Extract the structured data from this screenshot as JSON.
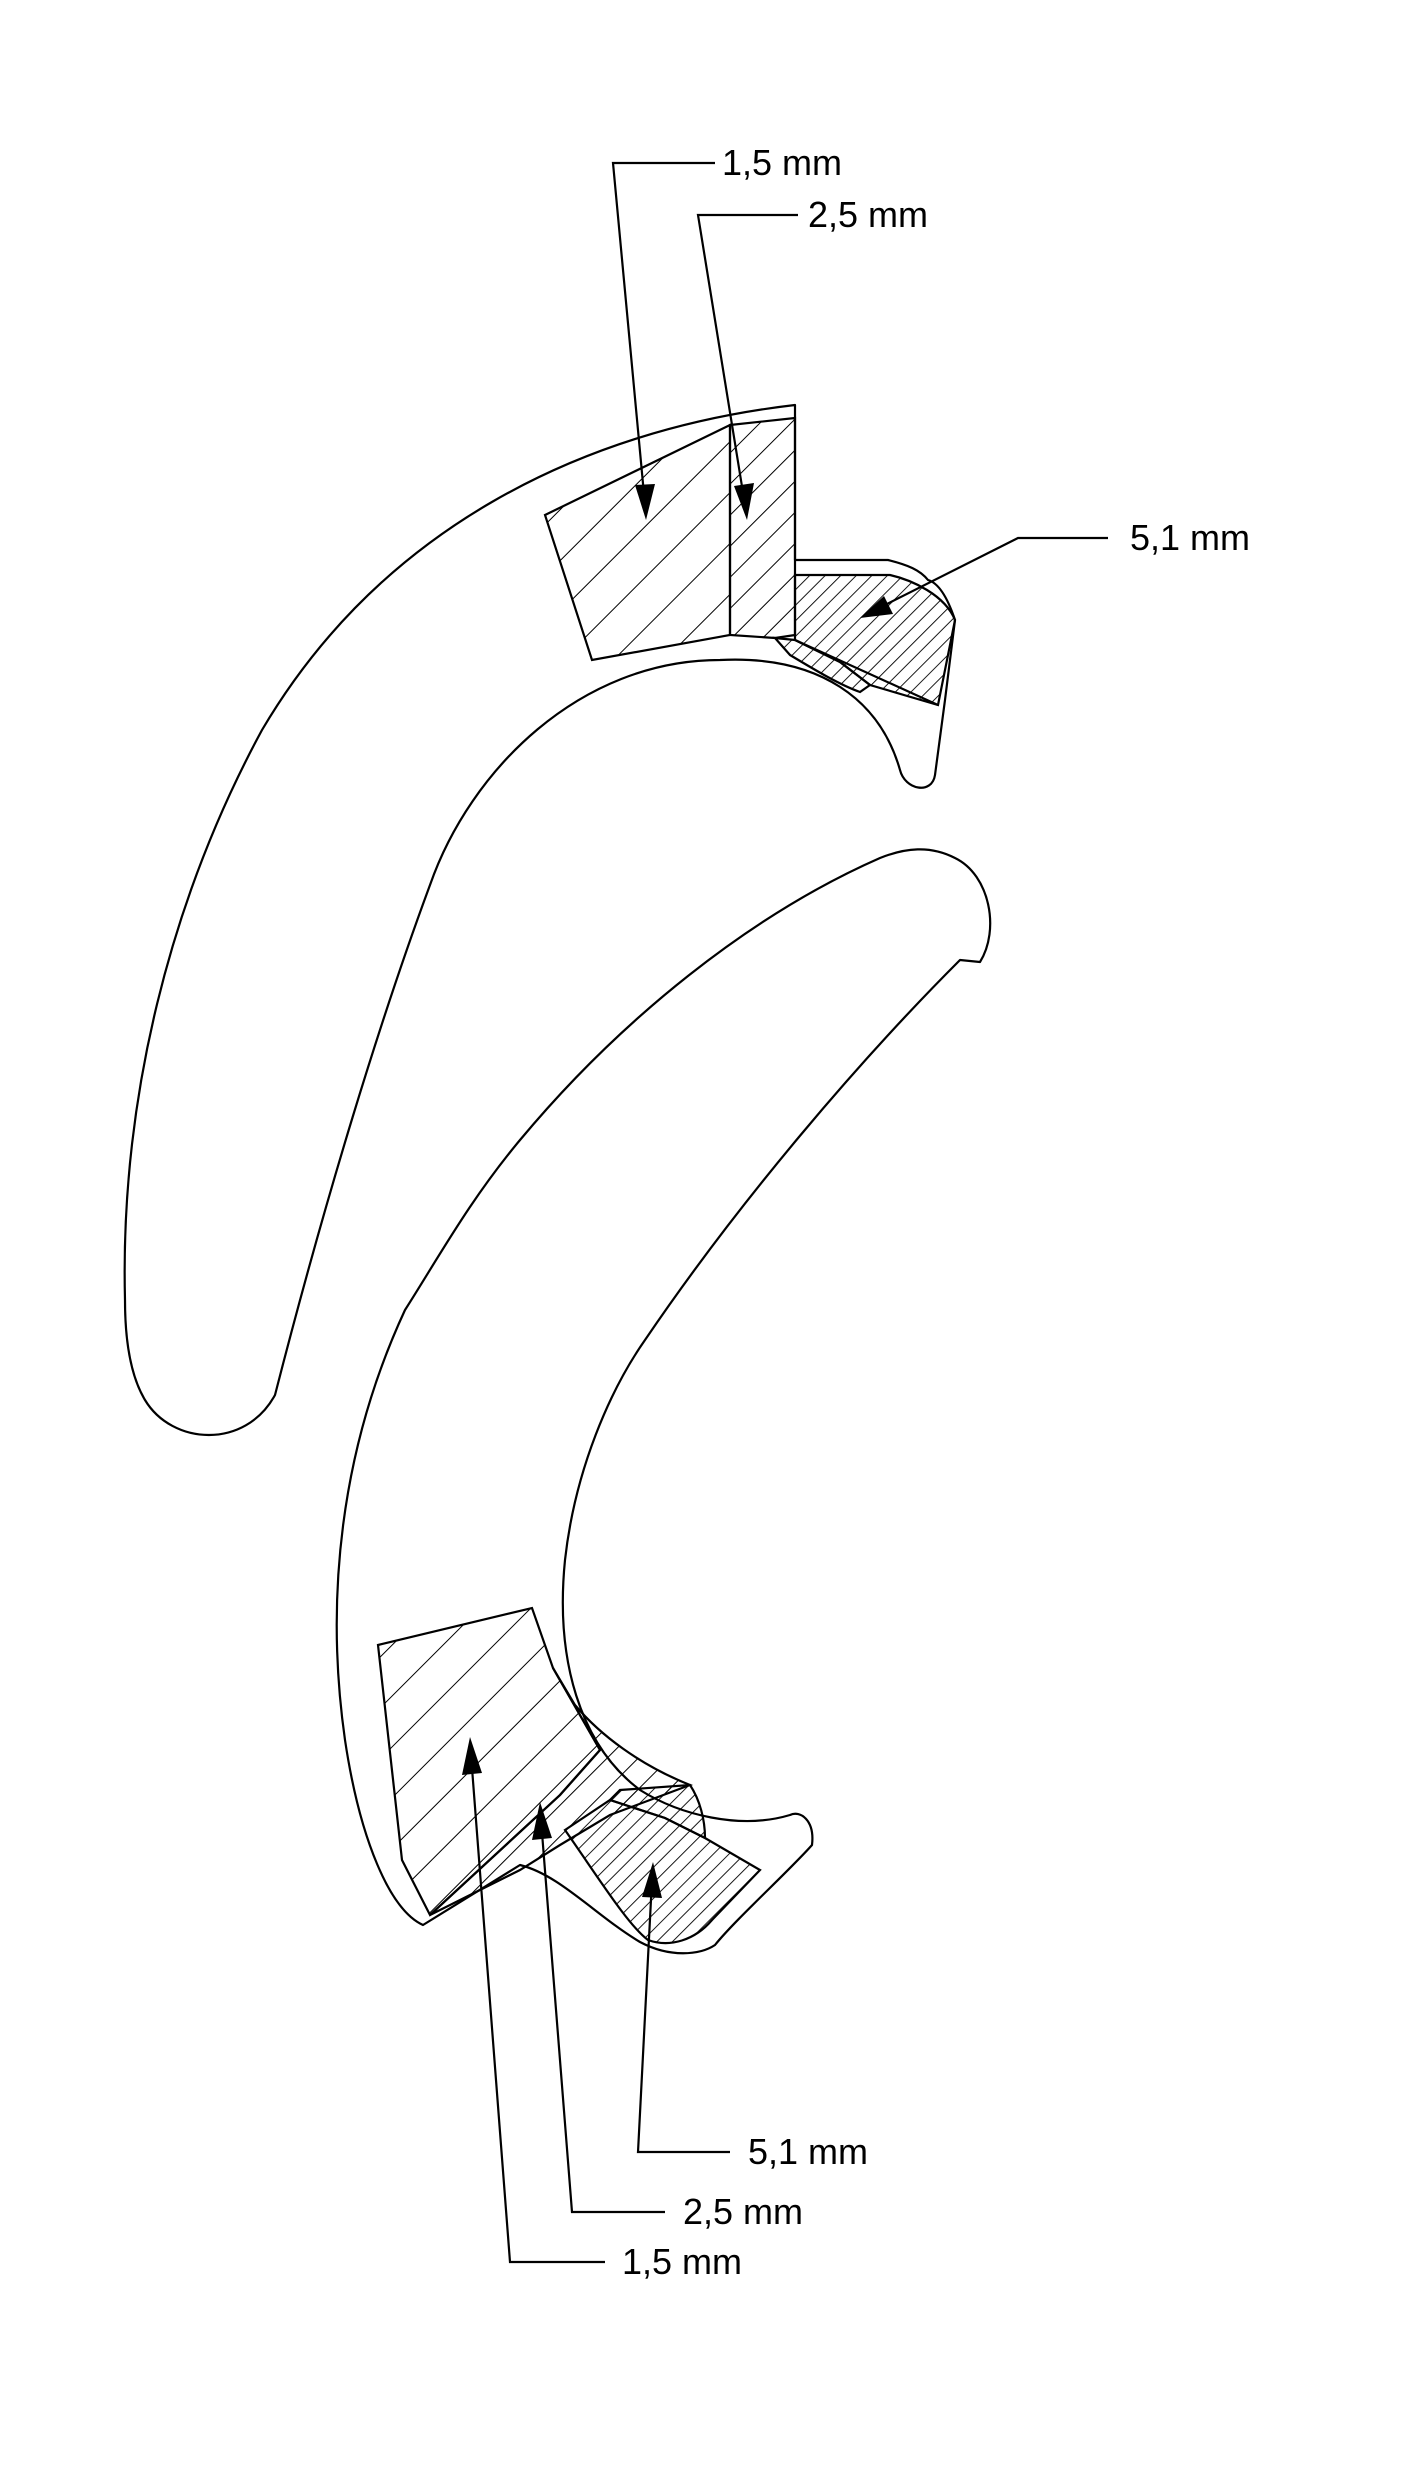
{
  "labels": {
    "upper": {
      "t1": "1,5 mm",
      "t2": "2,5 mm",
      "t3": "5,1 mm"
    },
    "lower": {
      "t1": "1,5 mm",
      "t2": "2,5 mm",
      "t3": "5,1 mm"
    }
  },
  "colors": {
    "line": "#000000",
    "background": "#ffffff"
  }
}
